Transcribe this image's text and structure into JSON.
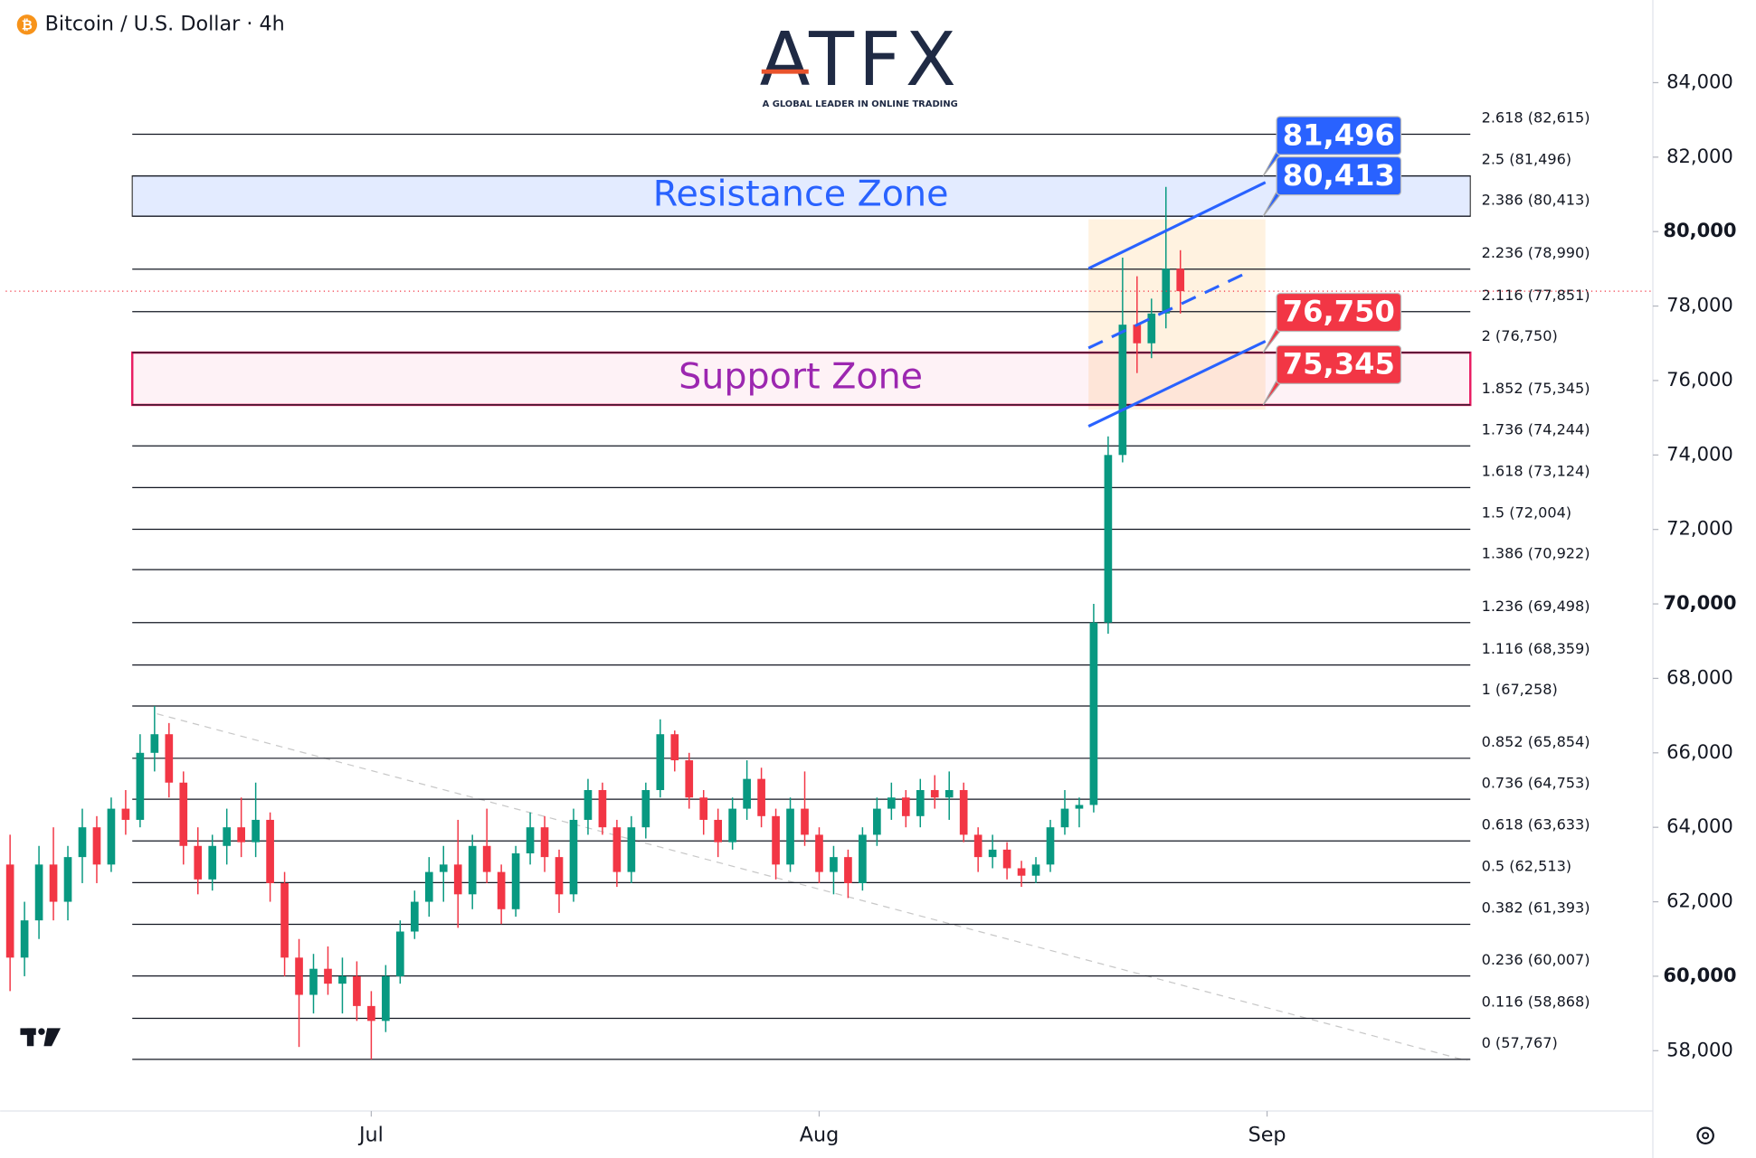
{
  "header": {
    "title": "Bitcoin / U.S. Dollar · 4h"
  },
  "logo": {
    "name": "ATFX",
    "tagline": "A GLOBAL LEADER IN ONLINE TRADING"
  },
  "chart_data": {
    "type": "candlestick",
    "colors": {
      "up": "#089981",
      "down": "#f23645"
    },
    "categories": [
      null,
      null,
      null,
      null,
      null,
      null,
      null,
      null,
      null,
      null,
      null,
      null,
      null,
      null,
      null,
      null,
      null,
      null,
      null,
      null,
      null,
      null,
      null,
      null,
      null,
      null,
      null,
      null,
      null,
      null,
      null,
      null,
      null,
      null,
      null,
      null,
      null,
      null,
      null,
      null,
      null,
      null,
      null,
      null,
      null,
      null,
      null,
      null,
      null,
      null,
      null,
      null,
      null,
      null,
      null,
      null,
      null,
      null,
      null,
      null,
      null,
      null,
      null,
      null,
      null,
      null,
      null,
      null,
      null,
      null,
      null,
      null,
      null,
      null,
      null,
      null,
      null,
      null,
      null,
      null,
      null,
      null
    ],
    "open": [
      63000,
      60500,
      61500,
      63000,
      62000,
      63200,
      64000,
      63000,
      64500,
      64200,
      66000,
      66500,
      65200,
      63500,
      62600,
      63500,
      64000,
      63600,
      64200,
      62500,
      60500,
      59500,
      60200,
      59800,
      60000,
      59200,
      58800,
      60000,
      61200,
      62000,
      62800,
      63000,
      62200,
      63500,
      62800,
      61800,
      63300,
      64000,
      63200,
      62200,
      64200,
      65000,
      64000,
      62800,
      64000,
      65000,
      66500,
      65800,
      64800,
      64200,
      63600,
      64500,
      65300,
      64300,
      63000,
      64500,
      63800,
      62800,
      63200,
      62500,
      63800,
      64500,
      64800,
      64300,
      65000,
      64800,
      65000,
      63800,
      63200,
      63400,
      62900,
      62700,
      63000,
      64000,
      64500,
      64600,
      69500,
      74000,
      77500,
      77000,
      77800,
      79000
    ],
    "high": [
      63800,
      62000,
      63500,
      64000,
      63500,
      64500,
      64300,
      64800,
      65000,
      66500,
      67258,
      66800,
      65500,
      64000,
      63800,
      64500,
      64800,
      65200,
      64400,
      62800,
      61000,
      60600,
      60800,
      60500,
      60400,
      59600,
      60300,
      61500,
      62300,
      63200,
      63500,
      64200,
      63800,
      64500,
      63000,
      63500,
      64400,
      64300,
      63400,
      64500,
      65300,
      65200,
      64200,
      64300,
      65200,
      66900,
      66600,
      66000,
      65000,
      64500,
      64800,
      65800,
      65600,
      64500,
      64800,
      65500,
      64000,
      63500,
      63400,
      64000,
      64800,
      65200,
      65000,
      65300,
      65400,
      65500,
      65200,
      64000,
      63800,
      63600,
      63100,
      63200,
      64200,
      65000,
      64800,
      70000,
      74500,
      79300,
      78800,
      78200,
      81200,
      79500
    ],
    "low": [
      59600,
      60000,
      61000,
      61500,
      61500,
      62500,
      62500,
      62800,
      63800,
      64000,
      65500,
      64800,
      63000,
      62200,
      62300,
      63000,
      63200,
      63200,
      62000,
      60000,
      58100,
      59000,
      59500,
      59000,
      58800,
      57767,
      58500,
      59800,
      61000,
      61600,
      62000,
      61300,
      61800,
      62500,
      61400,
      61600,
      63000,
      62800,
      61700,
      62000,
      63800,
      63800,
      62400,
      62500,
      63700,
      64800,
      65500,
      64500,
      63800,
      63200,
      63400,
      64200,
      64000,
      62600,
      62800,
      63500,
      62500,
      62200,
      62100,
      62300,
      63500,
      64200,
      64000,
      64000,
      64500,
      64200,
      63600,
      62800,
      62900,
      62600,
      62400,
      62500,
      62800,
      63800,
      64000,
      64400,
      69200,
      73800,
      76200,
      76600,
      77400,
      77800
    ],
    "close": [
      60500,
      61500,
      63000,
      62000,
      63200,
      64000,
      63000,
      64500,
      64200,
      66000,
      66500,
      65200,
      63500,
      62600,
      63500,
      64000,
      63600,
      64200,
      62500,
      60500,
      59500,
      60200,
      59800,
      60000,
      59200,
      58800,
      60000,
      61200,
      62000,
      62800,
      63000,
      62200,
      63500,
      62800,
      61800,
      63300,
      64000,
      63200,
      62200,
      64200,
      65000,
      64000,
      62800,
      64000,
      65000,
      66500,
      65800,
      64800,
      64200,
      63600,
      64500,
      65300,
      64300,
      63000,
      64500,
      63800,
      62800,
      63200,
      62500,
      63800,
      64500,
      64800,
      64300,
      65000,
      64800,
      65000,
      63800,
      63200,
      63400,
      62900,
      62700,
      63000,
      64000,
      64500,
      64600,
      69500,
      74000,
      77500,
      77000,
      77800,
      79000,
      78400
    ],
    "xlim": [
      -0.3,
      113.7
    ],
    "xticks": [
      {
        "value": 25,
        "label": "Jul"
      },
      {
        "value": 56,
        "label": "Aug"
      },
      {
        "value": 87,
        "label": "Sep"
      }
    ],
    "ylim": [
      56380,
      86070
    ],
    "yticks": [
      {
        "value": 58000,
        "label": "58,000"
      },
      {
        "value": 60000,
        "label": "60,000"
      },
      {
        "value": 62000,
        "label": "62,000"
      },
      {
        "value": 64000,
        "label": "64,000"
      },
      {
        "value": 66000,
        "label": "66,000"
      },
      {
        "value": 68000,
        "label": "68,000"
      },
      {
        "value": 70000,
        "label": "70,000"
      },
      {
        "value": 72000,
        "label": "72,000"
      },
      {
        "value": 74000,
        "label": "74,000"
      },
      {
        "value": 76000,
        "label": "76,000"
      },
      {
        "value": 78000,
        "label": "78,000"
      },
      {
        "value": 80000,
        "label": "80,000"
      },
      {
        "value": 82000,
        "label": "82,000"
      },
      {
        "value": 84000,
        "label": "84,000"
      }
    ],
    "fib_levels": [
      {
        "value": 82615,
        "label": "2.618 (82,615)"
      },
      {
        "value": 81496,
        "label": "2.5 (81,496)"
      },
      {
        "value": 80413,
        "label": "2.386 (80,413)"
      },
      {
        "value": 78990,
        "label": "2.236 (78,990)"
      },
      {
        "value": 77851,
        "label": "2.116 (77,851)"
      },
      {
        "value": 76750,
        "label": "2 (76,750)"
      },
      {
        "value": 75345,
        "label": "1.852 (75,345)"
      },
      {
        "value": 74244,
        "label": "1.736 (74,244)"
      },
      {
        "value": 73124,
        "label": "1.618 (73,124)"
      },
      {
        "value": 72004,
        "label": "1.5 (72,004)"
      },
      {
        "value": 70922,
        "label": "1.386 (70,922)"
      },
      {
        "value": 69498,
        "label": "1.236 (69,498)"
      },
      {
        "value": 68359,
        "label": "1.116 (68,359)"
      },
      {
        "value": 67258,
        "label": "1 (67,258)"
      },
      {
        "value": 65854,
        "label": "0.852 (65,854)"
      },
      {
        "value": 64753,
        "label": "0.736 (64,753)"
      },
      {
        "value": 63633,
        "label": "0.618 (63,633)"
      },
      {
        "value": 62513,
        "label": "0.5 (62,513)"
      },
      {
        "value": 61393,
        "label": "0.382 (61,393)"
      },
      {
        "value": 60007,
        "label": "0.236 (60,007)"
      },
      {
        "value": 58868,
        "label": "0.116 (58,868)"
      },
      {
        "value": 57767,
        "label": "0 (57,767)"
      }
    ],
    "zones": [
      {
        "name": "Resistance Zone",
        "low": 80413,
        "high": 81496,
        "color": "#2962ff"
      },
      {
        "name": "Support Zone",
        "low": 75345,
        "high": 76750,
        "color": "#e91e63"
      }
    ],
    "price_labels": [
      {
        "value": 81496,
        "label": "81,496",
        "color": "#2962ff"
      },
      {
        "value": 80413,
        "label": "80,413",
        "color": "#2962ff"
      },
      {
        "value": 76750,
        "label": "76,750",
        "color": "#f23645"
      },
      {
        "value": 75345,
        "label": "75,345",
        "color": "#f23645"
      }
    ]
  }
}
